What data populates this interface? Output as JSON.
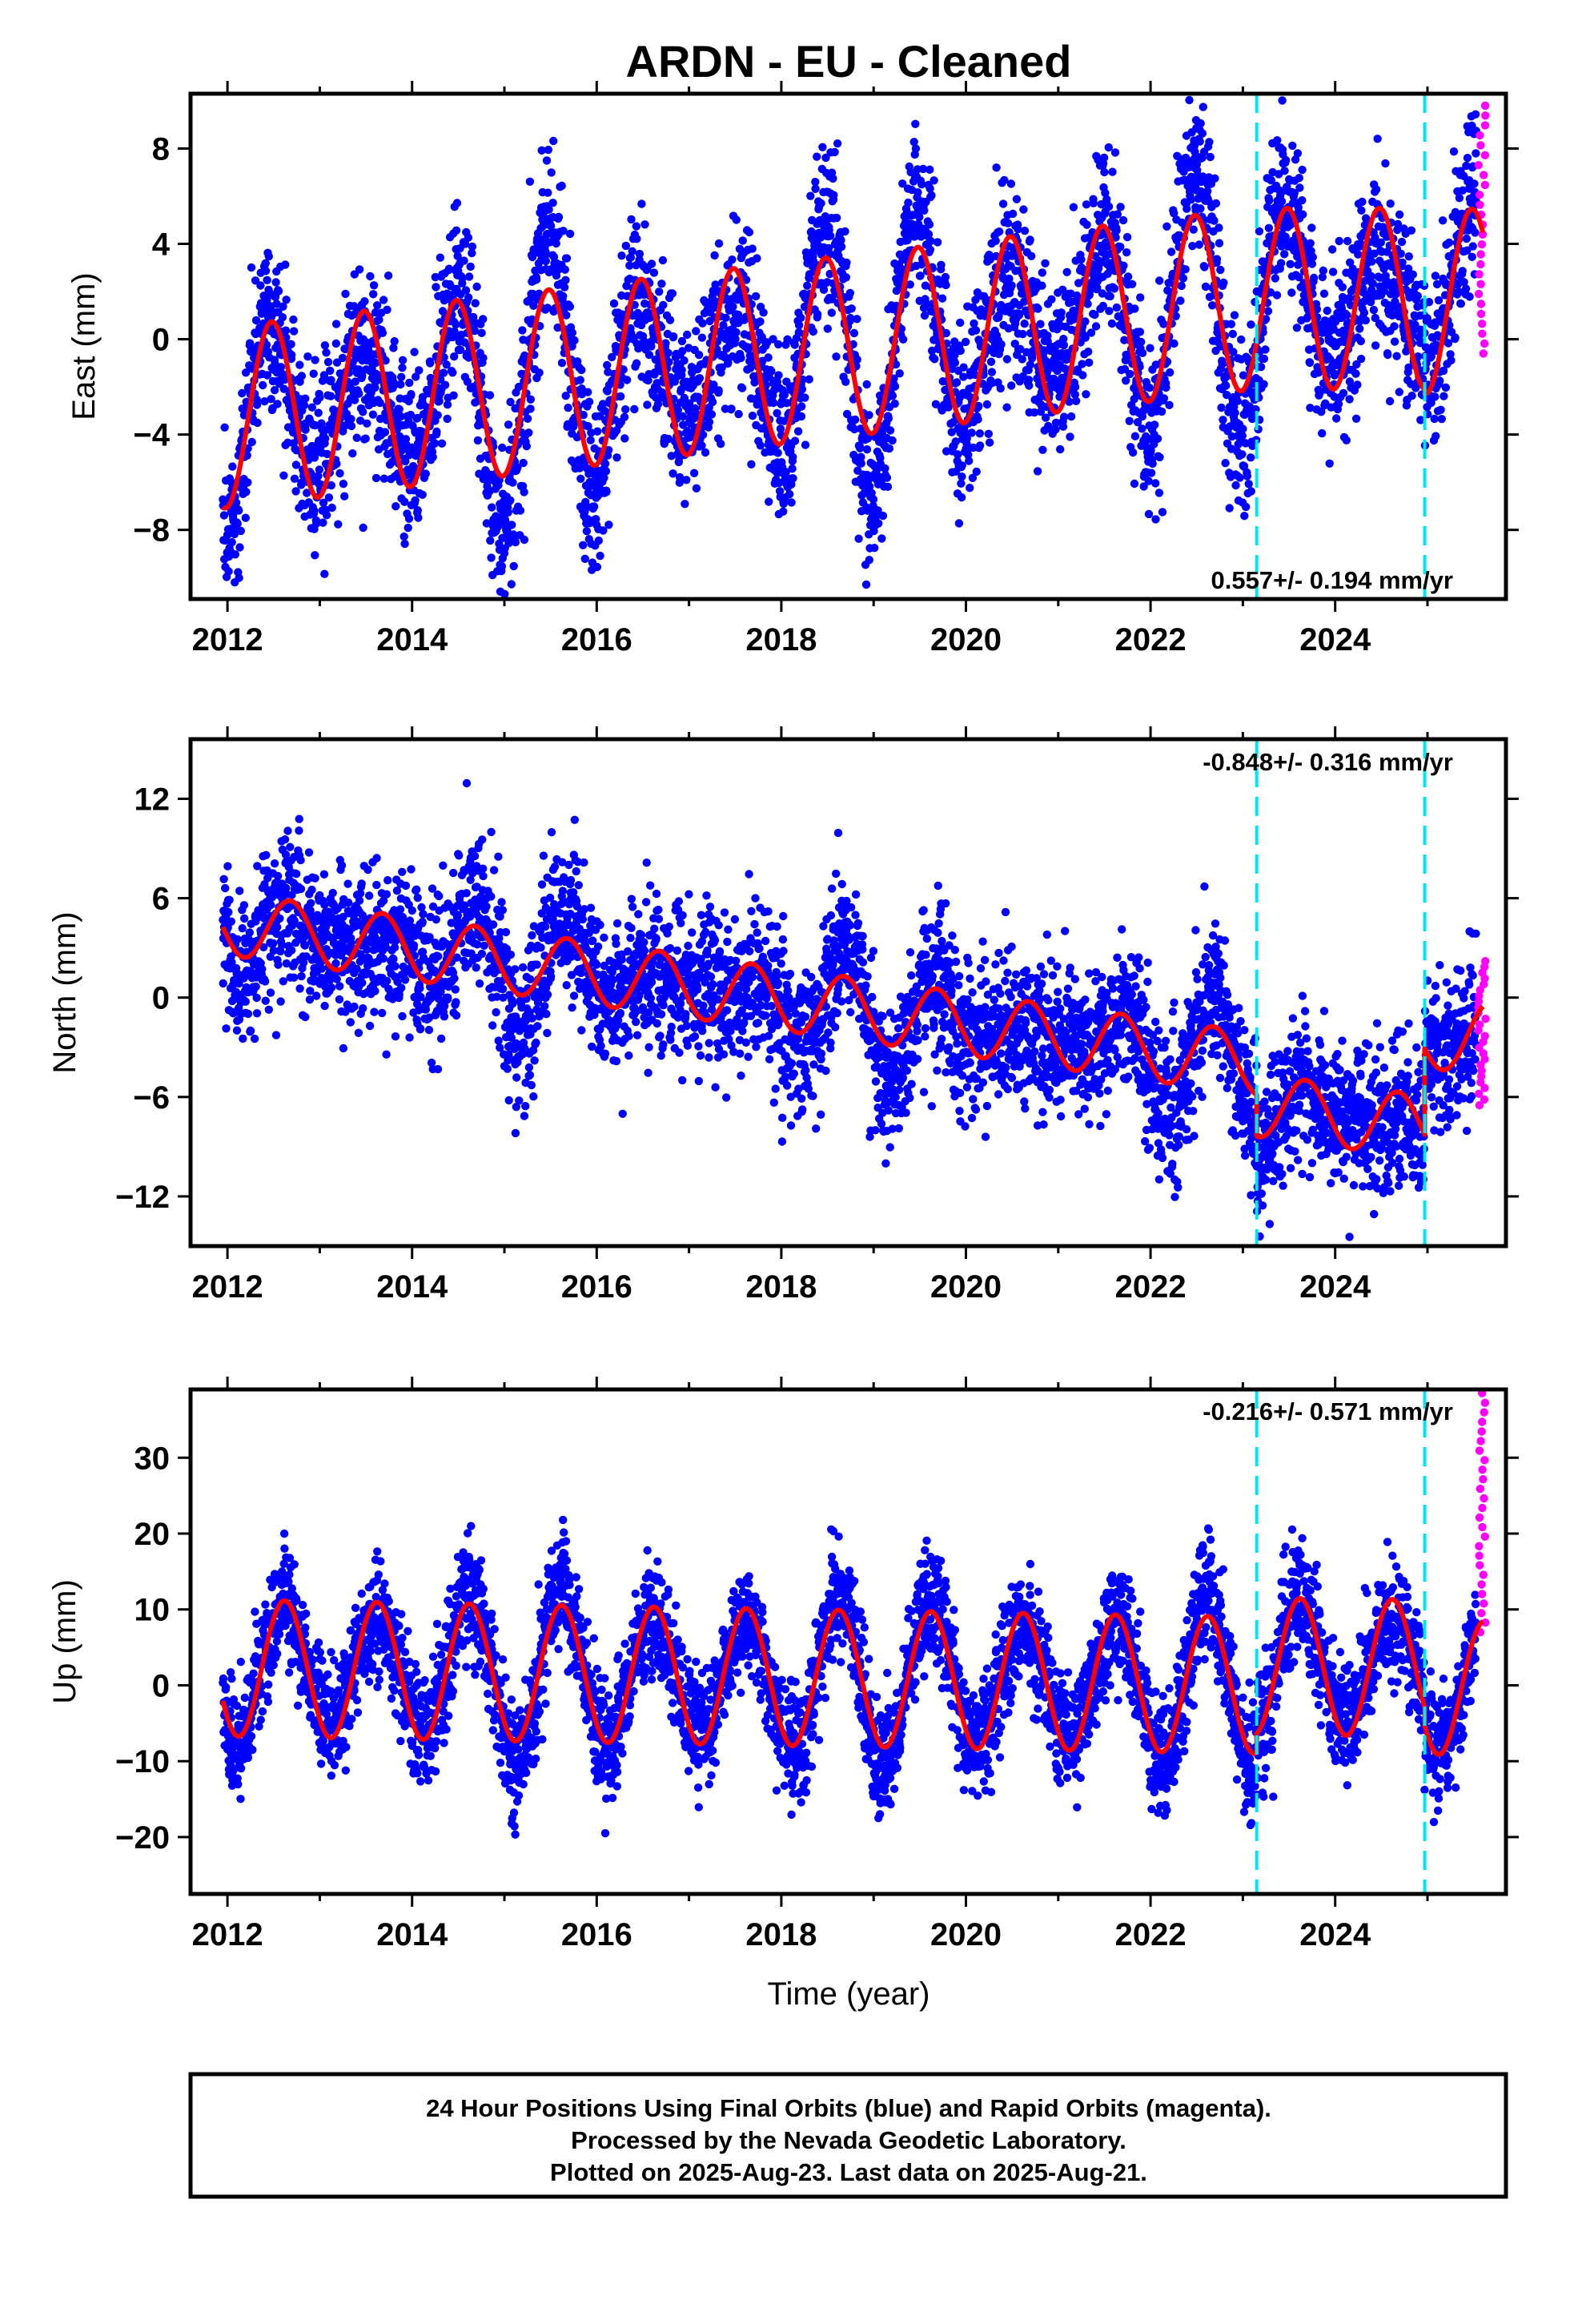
{
  "title": "ARDN  - EU - Cleaned",
  "colors": {
    "final_orbits": "#0000ff",
    "rapid_orbits": "#ff00ff",
    "model": "#ff0000",
    "offsets": "#00e5ee",
    "frame": "#000000"
  },
  "footer": {
    "line1": "24 Hour Positions Using Final Orbits (blue) and Rapid Orbits (magenta).",
    "line2": "Processed by the Nevada Geodetic Laboratory.",
    "line3": "Plotted on 2025-Aug-23. Last data on 2025-Aug-21."
  },
  "chart_data": [
    {
      "type": "scatter",
      "panel": "east",
      "xlabel": "",
      "ylabel": "East (mm)",
      "xlim": [
        2011.6,
        2025.85
      ],
      "ylim": [
        -10.9,
        10.3
      ],
      "x_ticks": [
        2012,
        2014,
        2016,
        2018,
        2020,
        2022,
        2024
      ],
      "y_ticks": [
        -8,
        -4,
        0,
        4,
        8
      ],
      "y_tick_labels": [
        "−8",
        "−4",
        "0",
        "4",
        "8"
      ],
      "rate_label": "0.557+/- 0.194 mm/yr",
      "offset_lines": [
        2023.15,
        2024.97
      ],
      "seasonal_model": {
        "amplitude_mm": 3.8,
        "peak_phase_year_fraction": 0.48,
        "segments": [
          {
            "x_start": 2011.95,
            "x_end": 2023.15,
            "base_start": -3.3,
            "base_end": 1.7
          },
          {
            "x_start": 2023.15,
            "x_end": 2024.97,
            "base_start": 1.7,
            "base_end": 1.7
          },
          {
            "x_start": 2024.97,
            "x_end": 2025.6,
            "base_start": 1.5,
            "base_end": 1.7
          }
        ]
      },
      "series": [
        {
          "name": "Final Orbits",
          "color": "#0000ff",
          "x_range": [
            2011.95,
            2025.53
          ],
          "scatter_mm": 1.8,
          "residual_amplitude_mm": 2.2
        },
        {
          "name": "Rapid Orbits",
          "color": "#ff00ff",
          "x_range": [
            2025.55,
            2025.63
          ],
          "y_range": [
            -0.6,
            9.8
          ]
        }
      ]
    },
    {
      "type": "scatter",
      "panel": "north",
      "xlabel": "",
      "ylabel": "North (mm)",
      "xlim": [
        2011.6,
        2025.85
      ],
      "ylim": [
        -15.0,
        15.6
      ],
      "x_ticks": [
        2012,
        2014,
        2016,
        2018,
        2020,
        2022,
        2024
      ],
      "y_ticks": [
        -12,
        -6,
        0,
        6,
        12
      ],
      "y_tick_labels": [
        "−12",
        "−6",
        "0",
        "6",
        "12"
      ],
      "rate_label": "-0.848+/- 0.316 mm/yr",
      "offset_lines": [
        2023.15,
        2024.97
      ],
      "seasonal_model": {
        "amplitude_mm": 1.9,
        "peak_phase_year_fraction": 0.68,
        "segments": [
          {
            "x_start": 2011.95,
            "x_end": 2023.15,
            "base_start": 4.5,
            "base_end": -4.0
          },
          {
            "x_start": 2023.15,
            "x_end": 2024.97,
            "base_start": -6.5,
            "base_end": -7.8
          },
          {
            "x_start": 2024.97,
            "x_end": 2025.6,
            "base_start": -2.6,
            "base_end": -2.2
          }
        ]
      },
      "series": [
        {
          "name": "Final Orbits",
          "color": "#0000ff",
          "x_range": [
            2011.95,
            2025.53
          ],
          "scatter_mm": 2.2,
          "residual_amplitude_mm": 2.0
        },
        {
          "name": "Rapid Orbits",
          "color": "#ff00ff",
          "x_range": [
            2025.55,
            2025.63
          ],
          "y_range": [
            -6.5,
            2.2
          ]
        }
      ]
    },
    {
      "type": "scatter",
      "panel": "up",
      "xlabel": "Time (year)",
      "ylabel": "Up (mm)",
      "xlim": [
        2011.6,
        2025.85
      ],
      "ylim": [
        -27.5,
        39.0
      ],
      "x_ticks": [
        2012,
        2014,
        2016,
        2018,
        2020,
        2022,
        2024
      ],
      "y_ticks": [
        -20,
        -10,
        0,
        10,
        20,
        30
      ],
      "y_tick_labels": [
        "−20",
        "−10",
        "0",
        "10",
        "20",
        "30"
      ],
      "rate_label": "-0.216+/- 0.571 mm/yr",
      "offset_lines": [
        2023.15,
        2024.97
      ],
      "seasonal_model": {
        "amplitude_mm": 9.0,
        "peak_phase_year_fraction": 0.62,
        "segments": [
          {
            "x_start": 2011.95,
            "x_end": 2023.15,
            "base_start": 2.3,
            "base_end": 0.0
          },
          {
            "x_start": 2023.15,
            "x_end": 2024.97,
            "base_start": 2.5,
            "base_end": 2.3
          },
          {
            "x_start": 2024.97,
            "x_end": 2025.6,
            "base_start": 0.0,
            "base_end": -0.5
          }
        ]
      },
      "series": [
        {
          "name": "Final Orbits",
          "color": "#0000ff",
          "x_range": [
            2011.95,
            2025.53
          ],
          "scatter_mm": 3.8,
          "residual_amplitude_mm": 2.5
        },
        {
          "name": "Rapid Orbits",
          "color": "#ff00ff",
          "x_range": [
            2025.55,
            2025.63
          ],
          "y_range": [
            7.0,
            38.5
          ]
        }
      ]
    }
  ]
}
